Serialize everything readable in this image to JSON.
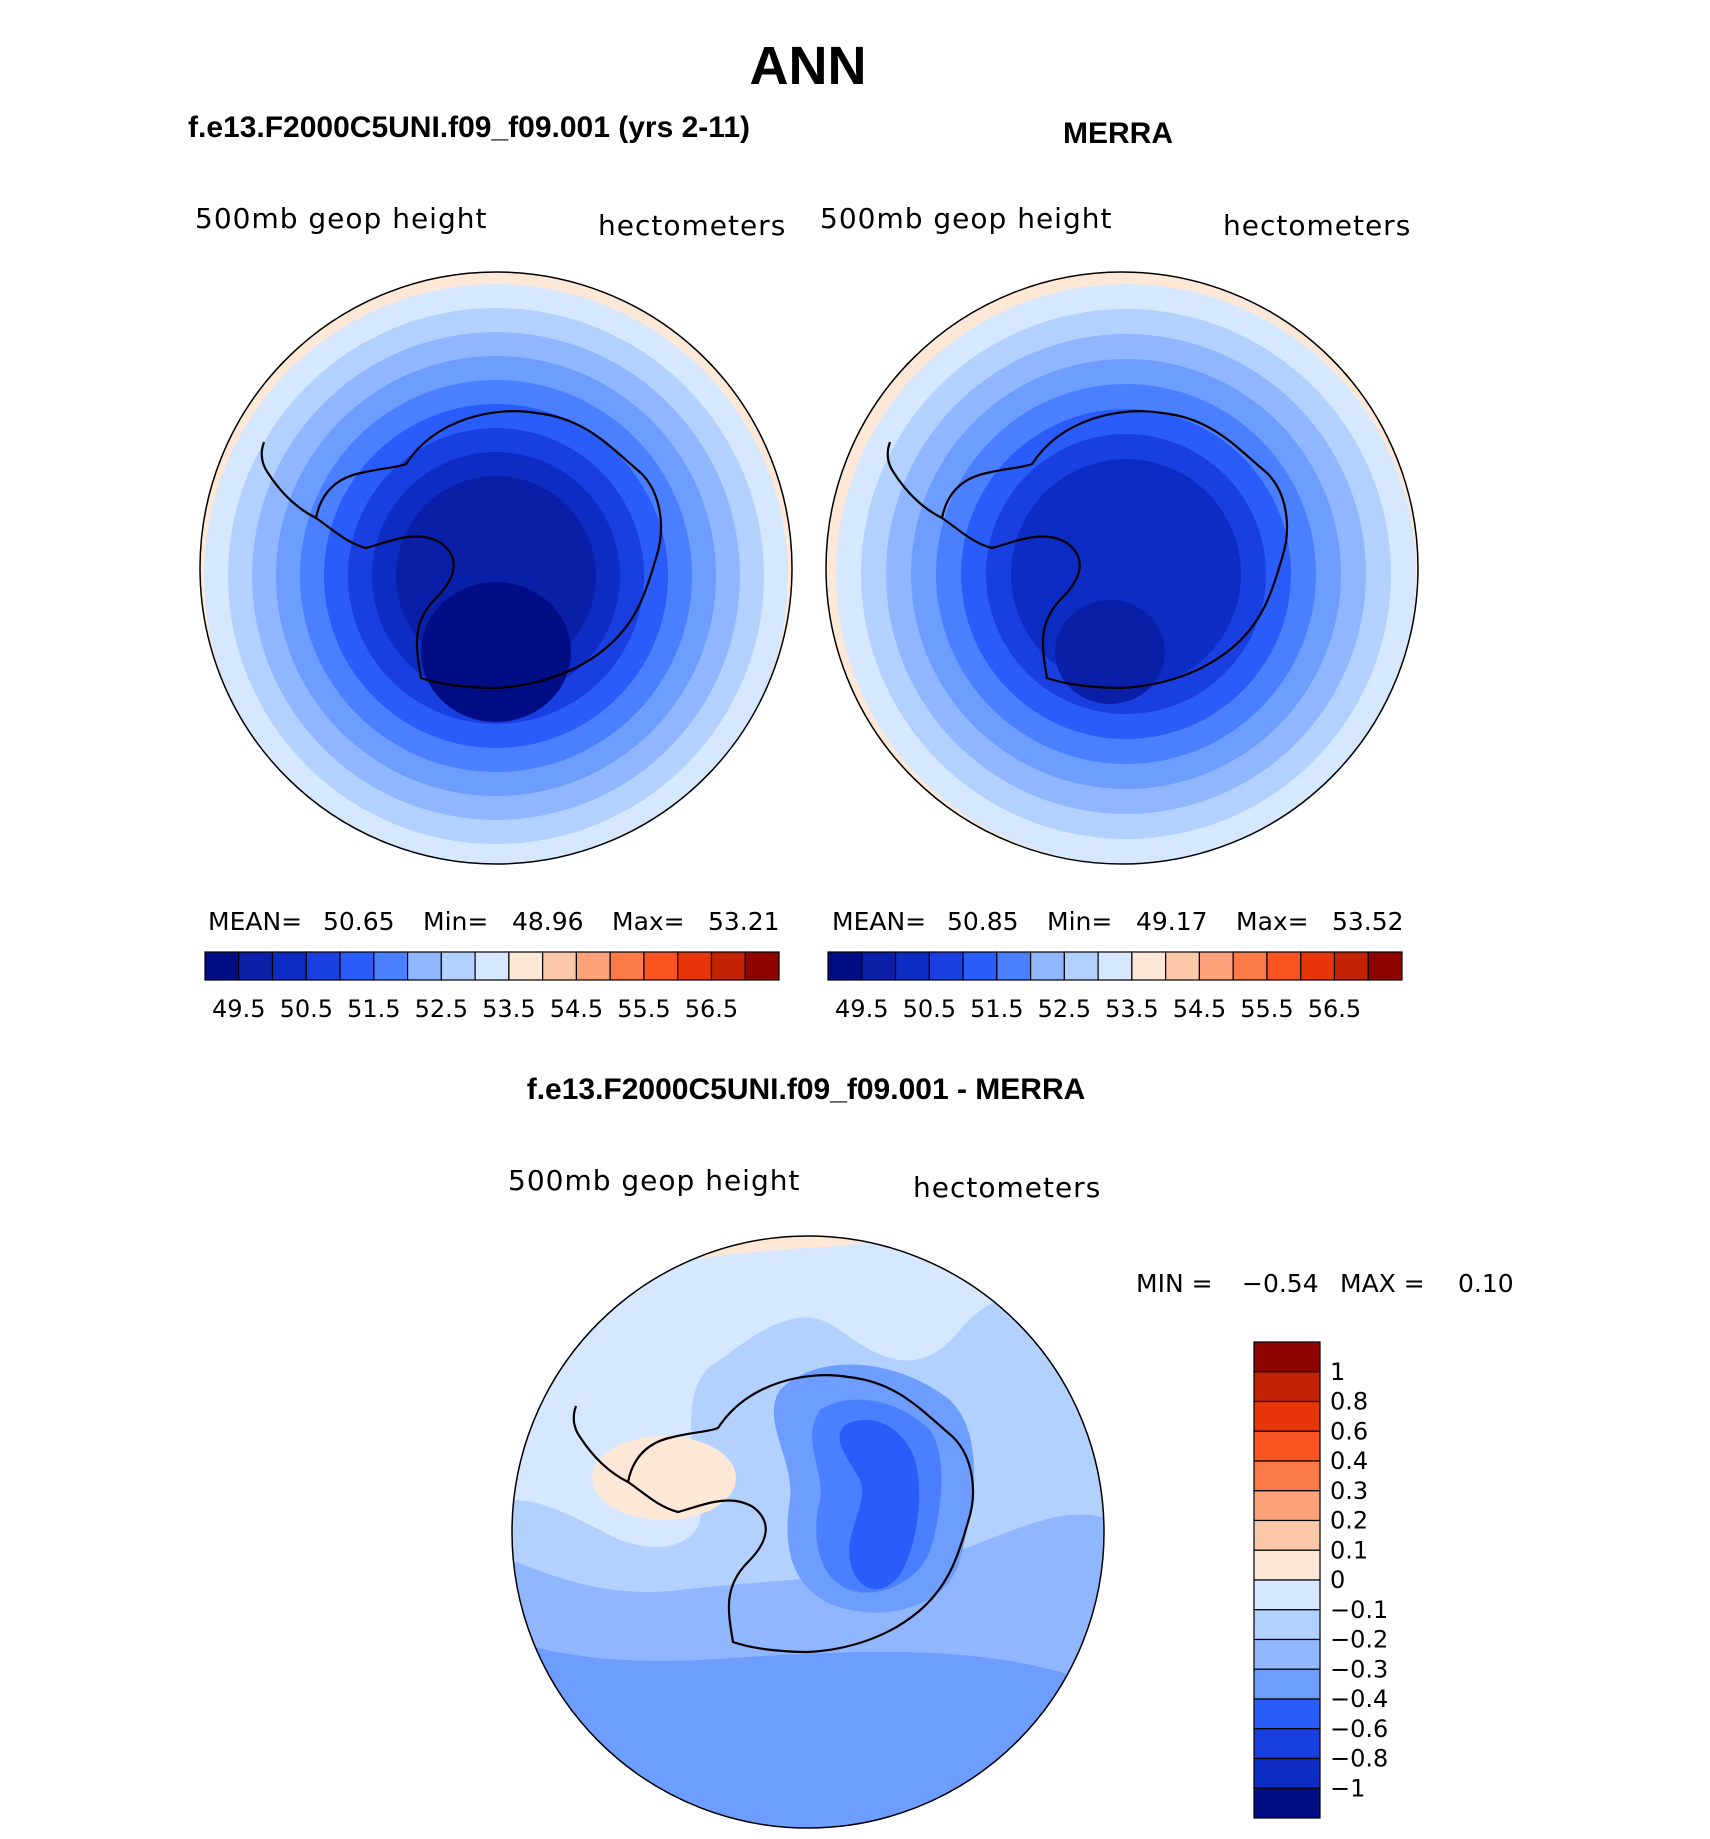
{
  "main_title": "ANN",
  "panels": [
    {
      "id": "model",
      "title": "f.e13.F2000C5UNI.f09_f09.001 (yrs 2-11)",
      "variable": "500mb geop height",
      "units": "hectometers",
      "stats": {
        "mean_label": "MEAN=",
        "mean": "50.65",
        "min_label": "Min=",
        "min": "48.96",
        "max_label": "Max=",
        "max": "53.21"
      },
      "field": {
        "ring_levels": [
          "#d6e8ff",
          "#b3d1ff",
          "#8fb6ff",
          "#6c9dff",
          "#4a7fff",
          "#2a5cfa",
          "#1a3fe0",
          "#0d2cc4",
          "#0a1fa8"
        ],
        "polar_low_color": "#000d85",
        "warm_edge_color": "#fde7d6"
      }
    },
    {
      "id": "obs",
      "title": "MERRA",
      "variable": "500mb geop height",
      "units": "hectometers",
      "stats": {
        "mean_label": "MEAN=",
        "mean": "50.85",
        "min_label": "Min=",
        "min": "49.17",
        "max_label": "Max=",
        "max": "53.52"
      },
      "field": {
        "ring_levels": [
          "#d6e8ff",
          "#b3d1ff",
          "#8fb6ff",
          "#6c9dff",
          "#4a7fff",
          "#2a5cfa",
          "#1a3fe0",
          "#0d2cc4"
        ],
        "polar_low_color": "#0a1fa8",
        "warm_edge_color": "#fde7d6"
      }
    },
    {
      "id": "diff",
      "title": "f.e13.F2000C5UNI.f09_f09.001 - MERRA",
      "variable": "500mb geop height",
      "units": "hectometers",
      "stats": {
        "min_label": "MIN =",
        "min": "−0.54",
        "max_label": "MAX =",
        "max": "0.10"
      }
    }
  ],
  "top_colorbar": {
    "colors": [
      "#000d85",
      "#0a1fa8",
      "#0d2cc4",
      "#1a3fe0",
      "#2a5cfa",
      "#4a7fff",
      "#8fb6ff",
      "#b3d1ff",
      "#d6e8ff",
      "#fde7d6",
      "#fcc8aa",
      "#fca27a",
      "#fc7a48",
      "#fc5420",
      "#e83608",
      "#c42204",
      "#900400"
    ],
    "labels": [
      "49.5",
      "50.5",
      "51.5",
      "52.5",
      "53.5",
      "54.5",
      "55.5",
      "56.5"
    ]
  },
  "diff_colorbar": {
    "colors": [
      "#900400",
      "#c42204",
      "#e83608",
      "#fc5420",
      "#fc7a48",
      "#fca27a",
      "#fcc8aa",
      "#fde7d6",
      "#d6e8ff",
      "#b3d1ff",
      "#8fb6ff",
      "#6c9dff",
      "#2a5cfa",
      "#1a3fe0",
      "#0d2cc4",
      "#000d85"
    ],
    "labels": [
      "1",
      "0.8",
      "0.6",
      "0.4",
      "0.3",
      "0.2",
      "0.1",
      "0",
      "−0.1",
      "−0.2",
      "−0.3",
      "−0.4",
      "−0.6",
      "−0.8",
      "−1"
    ]
  }
}
